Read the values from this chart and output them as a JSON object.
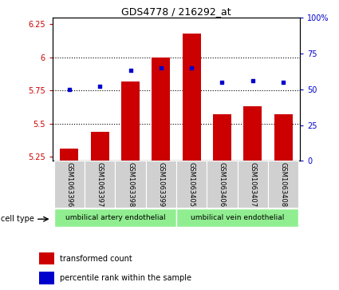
{
  "title": "GDS4778 / 216292_at",
  "samples": [
    "GSM1063396",
    "GSM1063397",
    "GSM1063398",
    "GSM1063399",
    "GSM1063405",
    "GSM1063406",
    "GSM1063407",
    "GSM1063408"
  ],
  "bar_values": [
    5.31,
    5.44,
    5.82,
    6.0,
    6.18,
    5.57,
    5.63,
    5.57
  ],
  "bar_base": 5.22,
  "percentile_values": [
    50,
    52,
    63,
    65,
    65,
    55,
    56,
    55
  ],
  "bar_color": "#cc0000",
  "dot_color": "#0000cc",
  "ylim_left": [
    5.22,
    6.3
  ],
  "ylim_right": [
    0,
    100
  ],
  "yticks_left": [
    5.25,
    5.5,
    5.75,
    6.0,
    6.25
  ],
  "ytick_labels_left": [
    "5.25",
    "5.5",
    "5.75",
    "6",
    "6.25"
  ],
  "yticks_right": [
    0,
    25,
    50,
    75,
    100
  ],
  "ytick_labels_right": [
    "0",
    "25",
    "50",
    "75",
    "100%"
  ],
  "hlines": [
    5.5,
    5.75,
    6.0
  ],
  "group1_label": "umbilical artery endothelial",
  "group2_label": "umbilical vein endothelial",
  "group1_indices": [
    0,
    1,
    2,
    3
  ],
  "group2_indices": [
    4,
    5,
    6,
    7
  ],
  "cell_type_label": "cell type",
  "legend1": "transformed count",
  "legend2": "percentile rank within the sample",
  "group_color": "#90ee90",
  "sample_bg_color": "#d0d0d0",
  "bar_width": 0.6
}
